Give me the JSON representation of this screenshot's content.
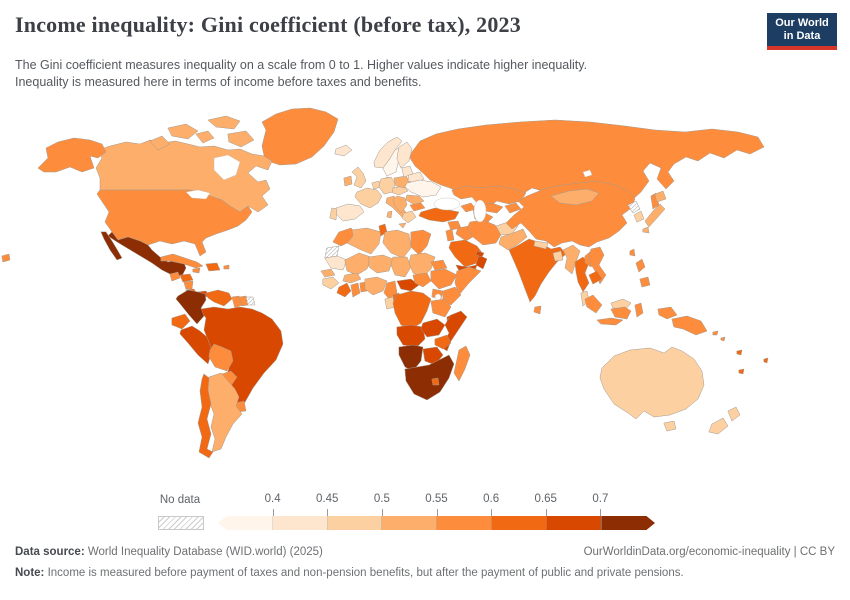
{
  "header": {
    "title": "Income inequality: Gini coefficient (before tax), 2023",
    "subtitle_line1": "The Gini coefficient measures inequality on a scale from 0 to 1. Higher values indicate higher inequality.",
    "subtitle_line2": "Inequality is measured here in terms of income before taxes and benefits.",
    "logo_line1": "Our World",
    "logo_line2": "in Data",
    "logo_bg_color": "#1d3d63",
    "logo_accent_color": "#d8352a"
  },
  "legend": {
    "no_data_label": "No data",
    "tick_labels": [
      "0.4",
      "0.45",
      "0.5",
      "0.55",
      "0.6",
      "0.65",
      "0.7"
    ]
  },
  "footer": {
    "source_label": "Data source:",
    "source_text": " World Inequality Database (WID.world) (2025)",
    "link_text": "OurWorldinData.org/economic-inequality | CC BY",
    "note_label": "Note:",
    "note_text": " Income is measured before payment of taxes and non-pension benefits, but after the payment of public and private pensions."
  },
  "chart_data": {
    "type": "heatmap",
    "subtype": "choropleth-world-map",
    "title": "Income inequality: Gini coefficient (before tax), 2023",
    "unit": "Gini coefficient (before taxes and benefits)",
    "year": 2023,
    "scale": [
      0,
      1
    ],
    "bin_thresholds": [
      0.4,
      0.45,
      0.5,
      0.55,
      0.6,
      0.65,
      0.7
    ],
    "bin_ranges": [
      "<0.4",
      "0.4-0.45",
      "0.45-0.5",
      "0.5-0.55",
      "0.55-0.6",
      "0.6-0.65",
      "0.65-0.7",
      ">0.7"
    ],
    "bin_colors": [
      "#fff5eb",
      "#fee6ce",
      "#fdd0a2",
      "#fdae6b",
      "#fd8d3c",
      "#f16913",
      "#d94801",
      "#8c2d04"
    ],
    "no_data_encoding": "-1 = no data (hatched)",
    "countries": {
      "canada": 3,
      "usa": 4,
      "greenland": 4,
      "mexico": 7,
      "guatemala": 4,
      "honduras": 5,
      "nicaragua": 4,
      "costa-rica": 5,
      "panama": 6,
      "cuba": 4,
      "hispaniola": 5,
      "jamaica": 4,
      "puerto-rico": 4,
      "colombia": 7,
      "venezuela": 5,
      "guyana": 4,
      "suriname": 4,
      "french-guiana": -1,
      "ecuador": 5,
      "peru": 6,
      "brazil": 6,
      "bolivia": 4,
      "paraguay": 4,
      "uruguay": 4,
      "argentina": 3,
      "chile": 5,
      "iceland": 1,
      "norway": 1,
      "sweden": 0,
      "finland": 1,
      "denmark": 2,
      "uk": 2,
      "ireland": 3,
      "france": 2,
      "spain": 1,
      "portugal": 2,
      "benelux": 2,
      "germany": 2,
      "central-europe": 2,
      "italy": 3,
      "poland": 3,
      "baltics": 1,
      "belarus": 1,
      "ukraine": 0,
      "romania": 3,
      "balkans": 3,
      "bulgaria": 4,
      "greece": 2,
      "russia": 4,
      "kazakhstan": 4,
      "uzbekistan": 4,
      "turkmenistan": 4,
      "kyrgyz-tajik": 4,
      "caucasus": 4,
      "turkey": 5,
      "syria": 4,
      "iraq": 4,
      "levant": 4,
      "iran": 4,
      "saudi-arabia": 5,
      "yemen": 6,
      "oman": 6,
      "uae": 6,
      "afghanistan": 2,
      "pakistan": 3,
      "india": 5,
      "nepal": 2,
      "bangladesh": 2,
      "sri-lanka": 4,
      "myanmar": 3,
      "thailand": 5,
      "laos": 4,
      "vietnam": 4,
      "cambodia": 5,
      "malaysia": 2,
      "china": 4,
      "mongolia": 3,
      "north-korea": -1,
      "south-korea": 2,
      "japan": 3,
      "taiwan": 4,
      "philippines": 4,
      "indonesia": 4,
      "papua-new-guinea": 4,
      "solomon-islands": 4,
      "pacific-islands": 5,
      "morocco": 4,
      "western-sahara": -1,
      "algeria": 3,
      "tunisia": 5,
      "libya": 3,
      "egypt": 4,
      "mauritania": 1,
      "mali": 3,
      "niger": 3,
      "chad": 3,
      "sudan": 3,
      "senegal": 3,
      "guinea": 2,
      "ivory-coast": 5,
      "ghana": 4,
      "togo-benin": 4,
      "burkina-faso": 3,
      "nigeria": 3,
      "cameroon": 4,
      "central-african-republic": 6,
      "south-sudan": 4,
      "eritrea": 4,
      "ethiopia": 4,
      "somalia": 4,
      "kenya": 4,
      "uganda": 4,
      "gabon": 2,
      "congo": 5,
      "drc": 5,
      "tanzania": 4,
      "angola": 6,
      "zambia": 6,
      "malawi": 6,
      "mozambique": 6,
      "zimbabwe": 5,
      "namibia": 7,
      "botswana": 6,
      "south-africa": 7,
      "lesotho": 5,
      "madagascar": 4,
      "australia": 2,
      "new-zealand": 2
    },
    "border_color": "#a39a8f",
    "legend_position": "bottom"
  }
}
